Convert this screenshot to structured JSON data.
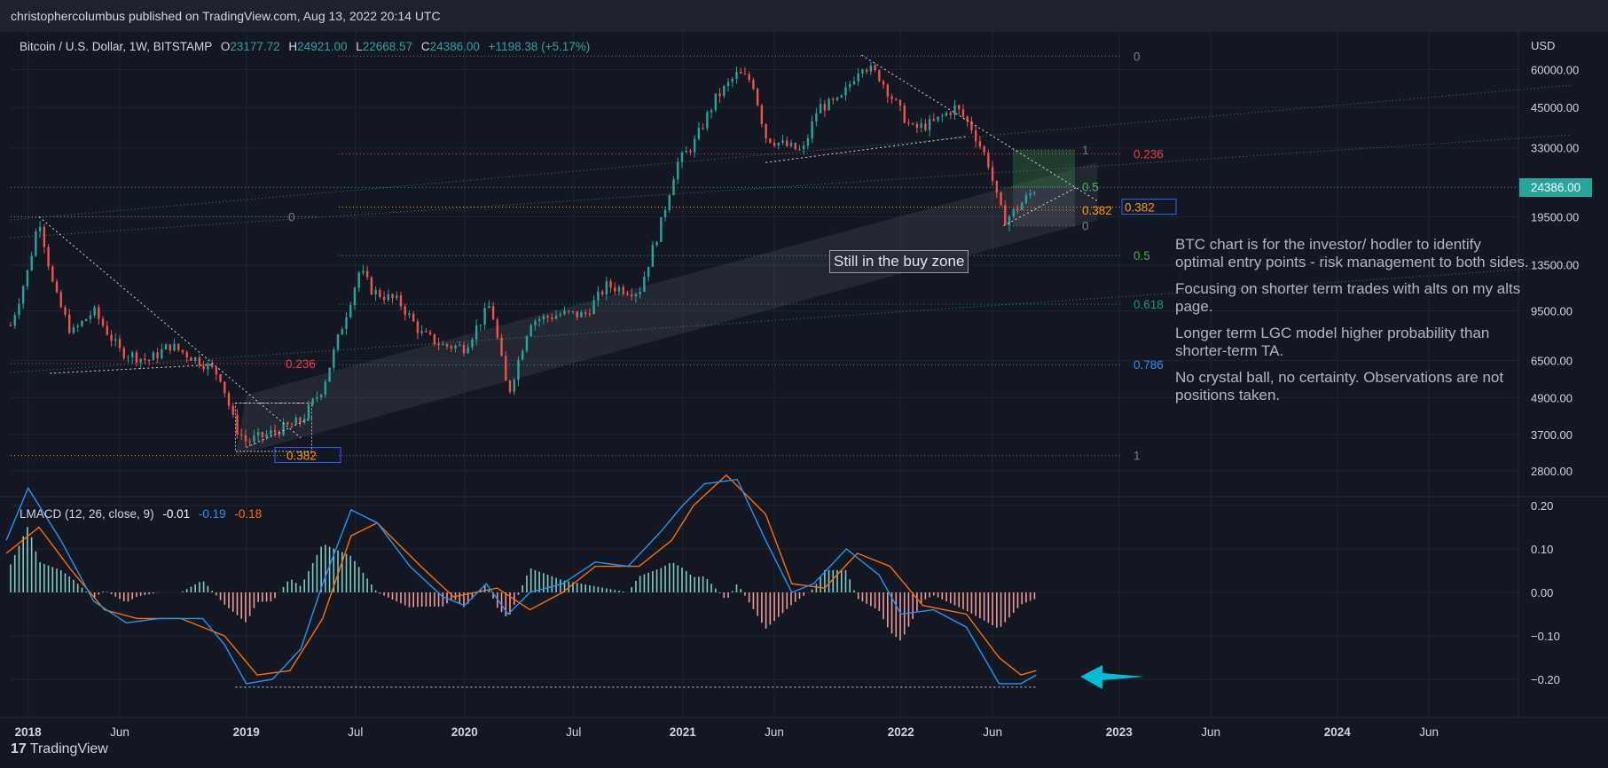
{
  "header": {
    "publisher_text": "christophercolumbus published on TradingView.com, Aug 13, 2022 20:14 UTC"
  },
  "legend": {
    "symbol": "Bitcoin / U.S. Dollar, 1W, BITSTAMP",
    "o_label": "O",
    "o_value": "23177.72",
    "h_label": "H",
    "h_value": "24921.00",
    "l_label": "L",
    "l_value": "22668.57",
    "c_label": "C",
    "c_value": "24386.00",
    "change": "+1198.38 (+5.17%)"
  },
  "macd_legend": {
    "name": "LMACD (12, 26, close, 9)",
    "hist": "-0.01",
    "macd": "-0.19",
    "signal": "-0.18"
  },
  "current_price": "24386.00",
  "annotations": {
    "buy_zone": "Still in the buy zone",
    "notes": [
      "BTC chart is for the investor/ hodler to identify optimal entry points - risk management to both sides.",
      "Focusing on shorter term trades with alts on my alts page.",
      "Longer term LGC model higher probability than shorter-term TA.",
      "No crystal ball, no certainty. Observations are not positions taken."
    ]
  },
  "brand": {
    "logo": "17",
    "name": "TradingView"
  },
  "colors": {
    "background": "#131722",
    "up": "#26a69a",
    "down": "#ef5350",
    "macd": "#2196f3",
    "signal": "#ff6d00",
    "grid": "#1f2430"
  },
  "chart_data": {
    "type": "candlestick",
    "title": "Bitcoin / U.S. Dollar, 1W, BITSTAMP",
    "scale": "log",
    "currency_label": "USD",
    "y_ticks": [
      60000,
      45000,
      33000,
      19500,
      13500,
      9500,
      6500,
      4900,
      3700,
      2800
    ],
    "y_tick_labels": [
      "60000.00",
      "45000.00",
      "33000.00",
      "19500.00",
      "13500.00",
      "9500.00",
      "6500.00",
      "4900.00",
      "3700.00",
      "2800.00"
    ],
    "x_ticks": [
      "2018",
      "Jun",
      "2019",
      "Jul",
      "2020",
      "Jul",
      "2021",
      "Jun",
      "2022",
      "Jun",
      "2023",
      "Jun",
      "2024",
      "Jun"
    ],
    "price_path": [
      [
        2017.92,
        8500
      ],
      [
        2018.0,
        13000
      ],
      [
        2018.05,
        19500
      ],
      [
        2018.12,
        11000
      ],
      [
        2018.2,
        8000
      ],
      [
        2018.3,
        9500
      ],
      [
        2018.42,
        7000
      ],
      [
        2018.55,
        6500
      ],
      [
        2018.65,
        7300
      ],
      [
        2018.8,
        6400
      ],
      [
        2018.88,
        5800
      ],
      [
        2018.95,
        3900
      ],
      [
        2019.0,
        3500
      ],
      [
        2019.1,
        3700
      ],
      [
        2019.25,
        4100
      ],
      [
        2019.35,
        5300
      ],
      [
        2019.48,
        10500
      ],
      [
        2019.52,
        13000
      ],
      [
        2019.58,
        11000
      ],
      [
        2019.7,
        10200
      ],
      [
        2019.8,
        8000
      ],
      [
        2019.9,
        7300
      ],
      [
        2020.0,
        7200
      ],
      [
        2020.12,
        10000
      ],
      [
        2020.2,
        5000
      ],
      [
        2020.3,
        8800
      ],
      [
        2020.45,
        9300
      ],
      [
        2020.55,
        9200
      ],
      [
        2020.65,
        11500
      ],
      [
        2020.8,
        11000
      ],
      [
        2020.9,
        18500
      ],
      [
        2020.97,
        29000
      ],
      [
        2021.05,
        34000
      ],
      [
        2021.15,
        48000
      ],
      [
        2021.25,
        58000
      ],
      [
        2021.32,
        55000
      ],
      [
        2021.38,
        36000
      ],
      [
        2021.45,
        34000
      ],
      [
        2021.55,
        32000
      ],
      [
        2021.62,
        45000
      ],
      [
        2021.72,
        47000
      ],
      [
        2021.82,
        63000
      ],
      [
        2021.9,
        57000
      ],
      [
        2021.97,
        47000
      ],
      [
        2022.05,
        38000
      ],
      [
        2022.15,
        40000
      ],
      [
        2022.25,
        45000
      ],
      [
        2022.32,
        39000
      ],
      [
        2022.4,
        29500
      ],
      [
        2022.45,
        21000
      ],
      [
        2022.48,
        19000
      ],
      [
        2022.55,
        21500
      ],
      [
        2022.62,
        24386
      ]
    ],
    "fib_levels": [
      {
        "label": "0",
        "value": 66500
      },
      {
        "label": "0.236",
        "value": 31500
      },
      {
        "label": "0.382",
        "value": 21000
      },
      {
        "label": "0.5",
        "value": 14500
      },
      {
        "label": "0.618",
        "value": 10000
      },
      {
        "label": "0.786",
        "value": 6300
      },
      {
        "label": "1",
        "value": 3150
      }
    ],
    "fib_levels_2018": [
      {
        "label": "0",
        "value": 19500
      },
      {
        "label": "0.236",
        "value": 6350
      },
      {
        "label": "0.382",
        "value": 3150
      }
    ],
    "local_fib": [
      {
        "label": "1",
        "value": 32500
      },
      {
        "label": "0.5",
        "value": 24500
      },
      {
        "label": "0.382",
        "value": 20500
      },
      {
        "label": "0",
        "value": 18200
      }
    ],
    "macd": {
      "y_ticks": [
        0.2,
        0.1,
        0.0,
        -0.1,
        -0.2
      ],
      "y_tick_labels": [
        "0.20",
        "0.10",
        "0.00",
        "−0.10",
        "−0.20"
      ],
      "macd_path": [
        [
          2017.9,
          0.12
        ],
        [
          2018.0,
          0.24
        ],
        [
          2018.15,
          0.12
        ],
        [
          2018.3,
          -0.02
        ],
        [
          2018.45,
          -0.07
        ],
        [
          2018.6,
          -0.06
        ],
        [
          2018.8,
          -0.06
        ],
        [
          2018.9,
          -0.12
        ],
        [
          2019.0,
          -0.21
        ],
        [
          2019.12,
          -0.2
        ],
        [
          2019.25,
          -0.13
        ],
        [
          2019.35,
          0.02
        ],
        [
          2019.48,
          0.19
        ],
        [
          2019.6,
          0.16
        ],
        [
          2019.75,
          0.06
        ],
        [
          2019.9,
          -0.01
        ],
        [
          2020.0,
          -0.03
        ],
        [
          2020.1,
          0.02
        ],
        [
          2020.2,
          -0.05
        ],
        [
          2020.3,
          0.0
        ],
        [
          2020.45,
          0.02
        ],
        [
          2020.6,
          0.07
        ],
        [
          2020.75,
          0.06
        ],
        [
          2020.9,
          0.14
        ],
        [
          2021.0,
          0.2
        ],
        [
          2021.1,
          0.25
        ],
        [
          2021.25,
          0.26
        ],
        [
          2021.38,
          0.12
        ],
        [
          2021.5,
          0.0
        ],
        [
          2021.6,
          0.02
        ],
        [
          2021.75,
          0.1
        ],
        [
          2021.9,
          0.04
        ],
        [
          2022.0,
          -0.05
        ],
        [
          2022.15,
          -0.04
        ],
        [
          2022.3,
          -0.08
        ],
        [
          2022.45,
          -0.21
        ],
        [
          2022.55,
          -0.21
        ],
        [
          2022.62,
          -0.19
        ]
      ],
      "signal_path": [
        [
          2017.9,
          0.09
        ],
        [
          2018.05,
          0.15
        ],
        [
          2018.2,
          0.05
        ],
        [
          2018.35,
          -0.04
        ],
        [
          2018.5,
          -0.06
        ],
        [
          2018.7,
          -0.06
        ],
        [
          2018.9,
          -0.1
        ],
        [
          2019.05,
          -0.19
        ],
        [
          2019.2,
          -0.18
        ],
        [
          2019.35,
          -0.06
        ],
        [
          2019.48,
          0.13
        ],
        [
          2019.6,
          0.16
        ],
        [
          2019.8,
          0.06
        ],
        [
          2019.95,
          -0.01
        ],
        [
          2020.15,
          0.01
        ],
        [
          2020.3,
          -0.04
        ],
        [
          2020.45,
          0.0
        ],
        [
          2020.6,
          0.06
        ],
        [
          2020.8,
          0.06
        ],
        [
          2020.95,
          0.12
        ],
        [
          2021.05,
          0.2
        ],
        [
          2021.2,
          0.27
        ],
        [
          2021.38,
          0.18
        ],
        [
          2021.5,
          0.02
        ],
        [
          2021.65,
          0.01
        ],
        [
          2021.8,
          0.09
        ],
        [
          2021.95,
          0.06
        ],
        [
          2022.1,
          -0.03
        ],
        [
          2022.3,
          -0.05
        ],
        [
          2022.45,
          -0.15
        ],
        [
          2022.55,
          -0.19
        ],
        [
          2022.62,
          -0.18
        ]
      ]
    }
  }
}
